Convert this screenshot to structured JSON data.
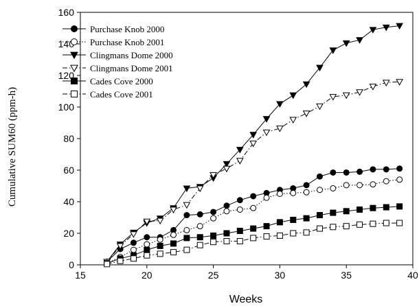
{
  "chart_data": {
    "type": "line",
    "xlabel": "Weeks",
    "ylabel": "Cumulative SUM60 (ppm-h)",
    "xlim": [
      15,
      40
    ],
    "ylim": [
      0,
      160
    ],
    "xticks": [
      15,
      20,
      25,
      30,
      35,
      40
    ],
    "yticks": [
      0,
      20,
      40,
      60,
      80,
      100,
      120,
      140,
      160
    ],
    "grid": false,
    "legend_position": "top-left",
    "series": [
      {
        "name": "Purchase Knob 2000",
        "marker": "circle",
        "filled": true,
        "line": "solid",
        "x": [
          17,
          18,
          19,
          20,
          21,
          22,
          23,
          24,
          25,
          26,
          27,
          28,
          29,
          30,
          31,
          32,
          33,
          34,
          35,
          36,
          37,
          38,
          39
        ],
        "y": [
          2,
          10,
          14,
          17.5,
          17.5,
          22,
          31.5,
          32,
          33.5,
          37.5,
          41,
          43.5,
          45.5,
          47.5,
          48.5,
          50.5,
          56,
          58.5,
          58.5,
          59,
          60.5,
          60.5,
          61
        ]
      },
      {
        "name": "Purchase Knob 2001",
        "marker": "circle",
        "filled": false,
        "line": "dotted",
        "x": [
          17,
          18,
          19,
          20,
          21,
          22,
          23,
          24,
          25,
          26,
          27,
          28,
          29,
          30,
          31,
          32,
          33,
          34,
          35,
          36,
          37,
          38,
          39
        ],
        "y": [
          1,
          5,
          9.5,
          13,
          16,
          19,
          22,
          24.5,
          29.5,
          34,
          35,
          36,
          42.5,
          45,
          45.5,
          46,
          47.5,
          48.5,
          50.5,
          50.5,
          51,
          53,
          54
        ]
      },
      {
        "name": "Clingmans Dome 2000",
        "marker": "triangle-down",
        "filled": true,
        "line": "solid",
        "x": [
          17,
          18,
          19,
          20,
          21,
          22,
          23,
          24,
          25,
          26,
          27,
          28,
          29,
          30,
          31,
          32,
          33,
          34,
          35,
          36,
          37,
          38,
          39
        ],
        "y": [
          2,
          13,
          20.5,
          26.5,
          29.5,
          36,
          48.5,
          49.5,
          55,
          64,
          73,
          82.5,
          92.5,
          102,
          107.5,
          114.5,
          125,
          136,
          140.5,
          142.5,
          149,
          150.5,
          151.5
        ]
      },
      {
        "name": "Clingmans Dome 2001",
        "marker": "triangle-down",
        "filled": false,
        "line": "dashdot",
        "x": [
          17,
          18,
          19,
          20,
          21,
          22,
          23,
          24,
          25,
          26,
          27,
          28,
          29,
          30,
          31,
          32,
          33,
          34,
          35,
          36,
          37,
          38,
          39
        ],
        "y": [
          2,
          12,
          19.5,
          27.5,
          28,
          35,
          38,
          48.5,
          57,
          61,
          66,
          77,
          84,
          86.5,
          92,
          96,
          100.5,
          106.5,
          107.5,
          109.5,
          113,
          115.5,
          116
        ]
      },
      {
        "name": "Cades Cove 2000",
        "marker": "square",
        "filled": true,
        "line": "solid",
        "x": [
          17,
          18,
          19,
          20,
          21,
          22,
          23,
          24,
          25,
          26,
          27,
          28,
          29,
          30,
          31,
          32,
          33,
          34,
          35,
          36,
          37,
          38,
          39
        ],
        "y": [
          1,
          4,
          6,
          9.5,
          12,
          13.5,
          17,
          17.5,
          18.5,
          20,
          21.5,
          23,
          24.5,
          27,
          28.5,
          29.5,
          31.5,
          33,
          34,
          35,
          36,
          36.5,
          37
        ]
      },
      {
        "name": "Cades Cove 2001",
        "marker": "square",
        "filled": false,
        "line": "dashdot",
        "x": [
          17,
          18,
          19,
          20,
          21,
          22,
          23,
          24,
          25,
          26,
          27,
          28,
          29,
          30,
          31,
          32,
          33,
          34,
          35,
          36,
          37,
          38,
          39
        ],
        "y": [
          0.5,
          2.5,
          4,
          6,
          7,
          8,
          9.5,
          12.5,
          14.5,
          15,
          15,
          17,
          18,
          18.5,
          20,
          20.5,
          23,
          24,
          24.5,
          25.5,
          26,
          26.5,
          26.5
        ]
      }
    ]
  }
}
